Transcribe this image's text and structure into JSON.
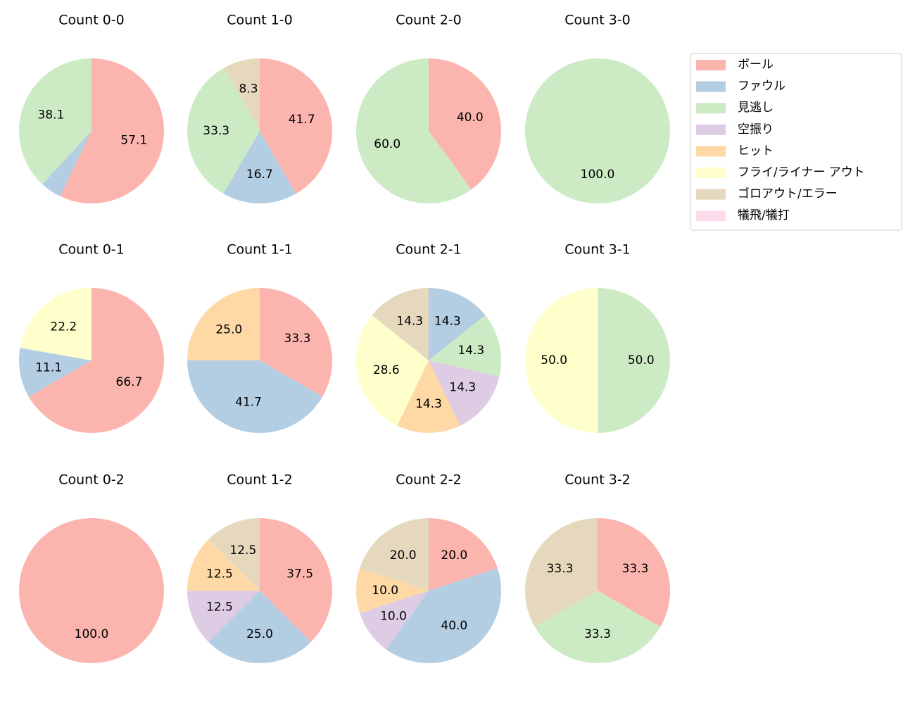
{
  "legend": {
    "labels": [
      "ボール",
      "ファウル",
      "見逃し",
      "空振り",
      "ヒット",
      "フライ/ライナー アウト",
      "ゴロアウト/エラー",
      "犠飛/犠打"
    ],
    "colors": [
      "#fbb4ae",
      "#b3cde3",
      "#ccebc5",
      "#decbe4",
      "#fed9a6",
      "#ffffcc",
      "#e5d8bd",
      "#fddaec"
    ]
  },
  "chart_data": [
    {
      "type": "pie",
      "title": "Count 0-0",
      "categories": [
        "ボール",
        "ファウル",
        "見逃し"
      ],
      "values": [
        57.1,
        4.8,
        38.1
      ],
      "value_labels": [
        "57.1",
        null,
        "38.1"
      ]
    },
    {
      "type": "pie",
      "title": "Count 1-0",
      "categories": [
        "ボール",
        "ファウル",
        "見逃し",
        "ゴロアウト/エラー"
      ],
      "values": [
        41.7,
        16.7,
        33.3,
        8.3
      ],
      "value_labels": [
        "41.7",
        "16.7",
        "33.3",
        "8.3"
      ]
    },
    {
      "type": "pie",
      "title": "Count 2-0",
      "categories": [
        "ボール",
        "見逃し"
      ],
      "values": [
        40,
        60
      ],
      "value_labels": [
        "40.0",
        "60.0"
      ]
    },
    {
      "type": "pie",
      "title": "Count 3-0",
      "categories": [
        "見逃し"
      ],
      "values": [
        100
      ],
      "value_labels": [
        "100.0"
      ]
    },
    {
      "type": "pie",
      "title": "Count 0-1",
      "categories": [
        "ボール",
        "ファウル",
        "フライ/ライナー アウト"
      ],
      "values": [
        66.7,
        11.1,
        22.2
      ],
      "value_labels": [
        "66.7",
        "11.1",
        "22.2"
      ]
    },
    {
      "type": "pie",
      "title": "Count 1-1",
      "categories": [
        "ボール",
        "ファウル",
        "ヒット"
      ],
      "values": [
        33.3,
        41.7,
        25
      ],
      "value_labels": [
        "33.3",
        "41.7",
        "25.0"
      ]
    },
    {
      "type": "pie",
      "title": "Count 2-1",
      "categories": [
        "ファウル",
        "見逃し",
        "空振り",
        "ヒット",
        "フライ/ライナー アウト",
        "ゴロアウト/エラー"
      ],
      "values": [
        14.3,
        14.3,
        14.3,
        14.3,
        28.6,
        14.3
      ],
      "value_labels": [
        "14.3",
        "14.3",
        "14.3",
        "14.3",
        "28.6",
        "14.3"
      ]
    },
    {
      "type": "pie",
      "title": "Count 3-1",
      "categories": [
        "見逃し",
        "フライ/ライナー アウト"
      ],
      "values": [
        50,
        50
      ],
      "value_labels": [
        "50.0",
        "50.0"
      ]
    },
    {
      "type": "pie",
      "title": "Count 0-2",
      "categories": [
        "ボール"
      ],
      "values": [
        100
      ],
      "value_labels": [
        "100.0"
      ]
    },
    {
      "type": "pie",
      "title": "Count 1-2",
      "categories": [
        "ボール",
        "ファウル",
        "空振り",
        "ヒット",
        "ゴロアウト/エラー"
      ],
      "values": [
        37.5,
        25,
        12.5,
        12.5,
        12.5
      ],
      "value_labels": [
        "37.5",
        "25.0",
        "12.5",
        "12.5",
        "12.5"
      ]
    },
    {
      "type": "pie",
      "title": "Count 2-2",
      "categories": [
        "ボール",
        "ファウル",
        "空振り",
        "ヒット",
        "ゴロアウト/エラー"
      ],
      "values": [
        20,
        40,
        10,
        10,
        20
      ],
      "value_labels": [
        "20.0",
        "40.0",
        "10.0",
        "10.0",
        "20.0"
      ]
    },
    {
      "type": "pie",
      "title": "Count 3-2",
      "categories": [
        "ボール",
        "見逃し",
        "ゴロアウト/エラー"
      ],
      "values": [
        33.3,
        33.3,
        33.3
      ],
      "value_labels": [
        "33.3",
        "33.3",
        "33.3"
      ]
    }
  ]
}
